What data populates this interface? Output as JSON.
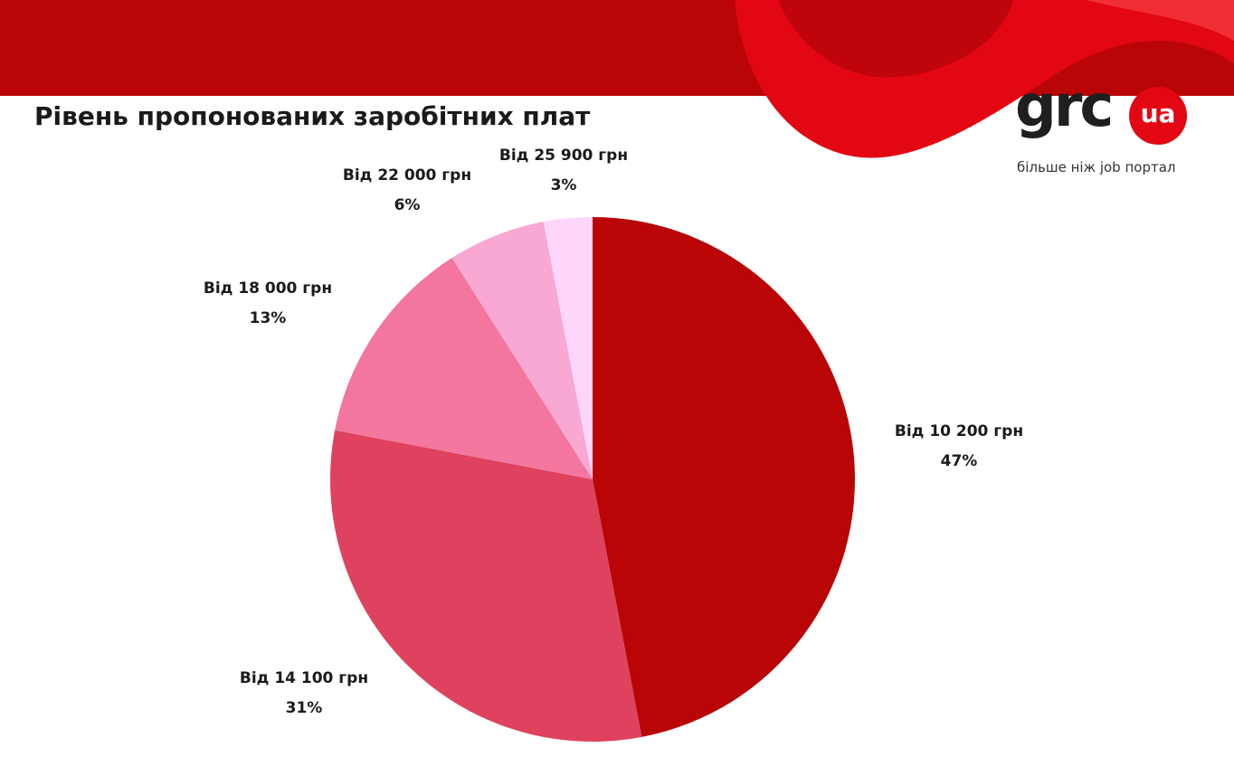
{
  "header": {
    "brand_color": "#b90505",
    "accent_color": "#e30613"
  },
  "logo": {
    "word": "grc",
    "badge": "ua",
    "tagline": "більше ніж job портал"
  },
  "chart_data": {
    "type": "pie",
    "title": "Рівень пропонованих заробітних плат",
    "start_angle": "12 o'clock",
    "direction": "clockwise",
    "slices": [
      {
        "label": "Від 10 200 грн",
        "value": 47,
        "value_label": "47%",
        "color": "#b90505"
      },
      {
        "label": "Від 14 100 грн",
        "value": 31,
        "value_label": "31%",
        "color": "#df425e"
      },
      {
        "label": "Від 18 000 грн",
        "value": 13,
        "value_label": "13%",
        "color": "#f2769d"
      },
      {
        "label": "Від 22 000 грн",
        "value": 6,
        "value_label": "6%",
        "color": "#f9a7d3"
      },
      {
        "label": "Від 25 900 грн",
        "value": 3,
        "value_label": "3%",
        "color": "#fed6fc"
      }
    ]
  }
}
